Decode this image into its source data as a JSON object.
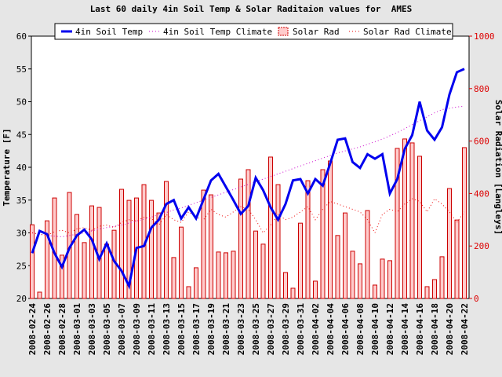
{
  "chart_data": {
    "type": "combo",
    "title": "Last 60 daily 4in Soil Temp & Solar Raditaion values for  AMES",
    "y_label": "Temperature [F]",
    "y2_label": "Solar Radiation [Langleys]",
    "categories": [
      "2008-02-24",
      null,
      "2008-02-26",
      null,
      "2008-02-28",
      null,
      "2008-03-01",
      null,
      "2008-03-03",
      null,
      "2008-03-05",
      null,
      "2008-03-07",
      null,
      "2008-03-09",
      null,
      "2008-03-11",
      null,
      "2008-03-13",
      null,
      "2008-03-15",
      null,
      "2008-03-17",
      null,
      "2008-03-19",
      null,
      "2008-03-21",
      null,
      "2008-03-23",
      null,
      "2008-03-25",
      null,
      "2008-03-27",
      null,
      "2008-03-29",
      null,
      "2008-03-31",
      null,
      "2008-04-02",
      null,
      "2008-04-04",
      null,
      "2008-04-06",
      null,
      "2008-04-08",
      null,
      "2008-04-10",
      null,
      "2008-04-12",
      null,
      "2008-04-14",
      null,
      "2008-04-16",
      null,
      "2008-04-18",
      null,
      "2008-04-20",
      null,
      "2008-04-22"
    ],
    "series": [
      {
        "name": "4in Soil Temp",
        "type": "line",
        "style": "solid",
        "color": "#0000ee",
        "axis": "y",
        "values": [
          26.9,
          30.3,
          29.8,
          26.9,
          24.8,
          27.7,
          29.6,
          30.5,
          29.0,
          26.0,
          28.4,
          25.7,
          24.2,
          21.9,
          27.7,
          28.0,
          30.8,
          32.0,
          34.4,
          35.0,
          32.2,
          33.9,
          32.2,
          35.1,
          38.0,
          39.0,
          37.0,
          35.0,
          32.9,
          34.1,
          38.4,
          36.5,
          33.9,
          32.0,
          34.4,
          38.0,
          38.2,
          36.0,
          38.2,
          37.2,
          40.6,
          44.2,
          44.4,
          40.8,
          39.9,
          42.0,
          41.3,
          42.0,
          36.0,
          38.2,
          42.8,
          44.9,
          50.0,
          45.6,
          44.2,
          46.1,
          51.1,
          54.5,
          55.0
        ]
      },
      {
        "name": "4in Soil Temp Climate",
        "type": "line",
        "style": "dotted",
        "color": "#cc00cc",
        "axis": "y",
        "values": [
          30.0,
          29.8,
          29.6,
          29.5,
          29.4,
          29.6,
          29.8,
          30.0,
          30.3,
          30.6,
          30.8,
          31.0,
          31.2,
          31.5,
          31.8,
          32.1,
          32.4,
          32.8,
          33.1,
          33.5,
          33.8,
          34.2,
          34.6,
          35.0,
          35.4,
          35.8,
          36.2,
          36.6,
          37.0,
          37.4,
          37.8,
          38.2,
          38.6,
          39.0,
          39.4,
          39.8,
          40.2,
          40.6,
          41.0,
          41.4,
          41.8,
          42.2,
          42.5,
          42.8,
          43.1,
          43.5,
          43.9,
          44.3,
          44.8,
          45.3,
          45.9,
          46.5,
          47.1,
          47.7,
          48.3,
          48.8,
          49.0,
          49.2,
          49.3
        ]
      },
      {
        "name": "Solar Rad",
        "type": "bar",
        "color": "#ffcccc",
        "edge_color": "#cc0000",
        "axis": "y2",
        "values": [
          281,
          24,
          296,
          383,
          165,
          404,
          320,
          213,
          353,
          347,
          207,
          260,
          416,
          374,
          383,
          434,
          374,
          326,
          446,
          156,
          272,
          45,
          117,
          413,
          395,
          177,
          174,
          180,
          455,
          491,
          257,
          207,
          539,
          434,
          99,
          39,
          287,
          449,
          66,
          491,
          524,
          240,
          326,
          180,
          132,
          335,
          51,
          150,
          144,
          572,
          608,
          593,
          542,
          45,
          72,
          159,
          419,
          299,
          575
        ]
      },
      {
        "name": "Solar Rad Climate",
        "type": "line",
        "style": "dotted",
        "color": "#ee0000",
        "axis": "y2",
        "values": [
          250,
          245,
          240,
          255,
          260,
          250,
          265,
          270,
          260,
          275,
          280,
          270,
          290,
          300,
          295,
          310,
          305,
          280,
          320,
          300,
          290,
          330,
          310,
          300,
          340,
          320,
          310,
          330,
          350,
          340,
          300,
          250,
          280,
          320,
          300,
          310,
          330,
          350,
          300,
          340,
          370,
          360,
          350,
          340,
          330,
          300,
          250,
          320,
          340,
          330,
          360,
          380,
          370,
          330,
          380,
          360,
          330,
          290,
          330
        ]
      }
    ],
    "ylim": [
      20,
      60
    ],
    "yticks": [
      20,
      25,
      30,
      35,
      40,
      45,
      50,
      55,
      60
    ],
    "y2lim": [
      0,
      1000
    ],
    "y2ticks": [
      0,
      200,
      400,
      600,
      800,
      1000
    ],
    "y2_color": "#dd0000"
  }
}
